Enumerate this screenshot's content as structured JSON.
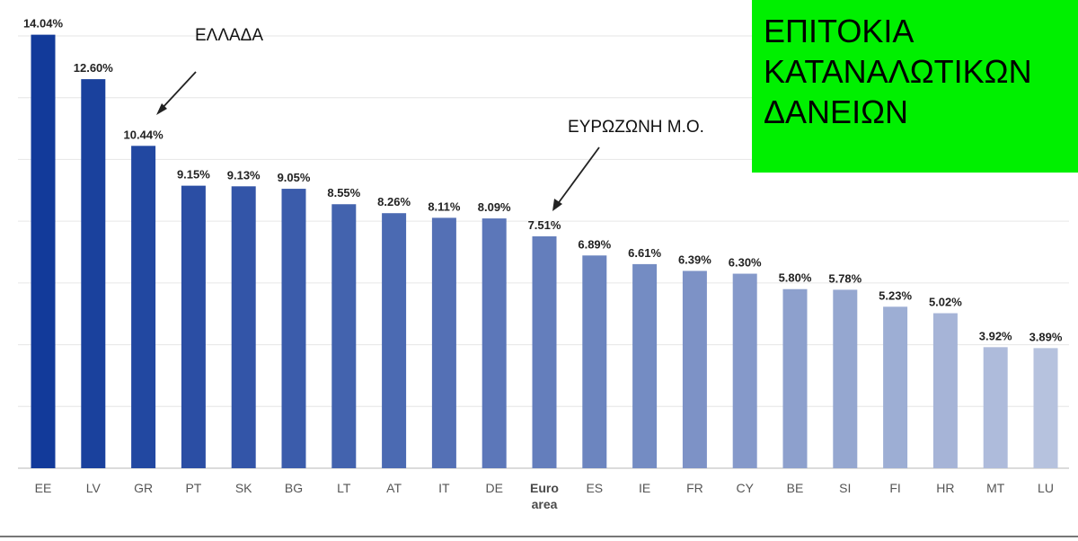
{
  "title_box": {
    "lines": [
      "ΕΠΙΤΟΚΙΑ",
      "ΚΑΤΑΝΑΛΩΤΙΚΩΝ",
      "ΔΑΝΕΙΩΝ"
    ],
    "background": "#00f000"
  },
  "annotations": [
    {
      "text": "ΕΛΛΑΔΑ",
      "points_to": "GR"
    },
    {
      "text": "ΕΥΡΩΖΩΝΗ Μ.Ο.",
      "points_to": "Euro area"
    }
  ],
  "chart_data": {
    "type": "bar",
    "categories": [
      "EE",
      "LV",
      "GR",
      "PT",
      "SK",
      "BG",
      "LT",
      "AT",
      "IT",
      "DE",
      "Euro area",
      "ES",
      "IE",
      "FR",
      "CY",
      "BE",
      "SI",
      "FI",
      "HR",
      "MT",
      "LU"
    ],
    "values": [
      14.04,
      12.6,
      10.44,
      9.15,
      9.13,
      9.05,
      8.55,
      8.26,
      8.11,
      8.09,
      7.51,
      6.89,
      6.61,
      6.39,
      6.3,
      5.8,
      5.78,
      5.23,
      5.02,
      3.92,
      3.89
    ],
    "value_labels": [
      "14.04%",
      "12.60%",
      "10.44%",
      "9.15%",
      "9.13%",
      "9.05%",
      "8.55%",
      "8.26%",
      "8.11%",
      "8.09%",
      "7.51%",
      "6.89%",
      "6.61%",
      "6.39%",
      "6.30%",
      "5.80%",
      "5.78%",
      "5.23%",
      "5.02%",
      "3.92%",
      "3.89%"
    ],
    "tick_labels": [
      [
        "EE"
      ],
      [
        "LV"
      ],
      [
        "GR"
      ],
      [
        "PT"
      ],
      [
        "SK"
      ],
      [
        "BG"
      ],
      [
        "LT"
      ],
      [
        "AT"
      ],
      [
        "IT"
      ],
      [
        "DE"
      ],
      [
        "Euro",
        "area"
      ],
      [
        "ES"
      ],
      [
        "IE"
      ],
      [
        "FR"
      ],
      [
        "CY"
      ],
      [
        "BE"
      ],
      [
        "SI"
      ],
      [
        "FI"
      ],
      [
        "HR"
      ],
      [
        "MT"
      ],
      [
        "LU"
      ]
    ],
    "highlight_tick": "Euro area",
    "ylim": [
      0,
      14
    ],
    "grid": true,
    "gridline_values": [
      2,
      4,
      6,
      8,
      10,
      12,
      14
    ],
    "title": "",
    "xlabel": "",
    "ylabel": "",
    "colors": {
      "darkest": "#123a9a",
      "lightest": "#b6c2de",
      "gridline": "#e6e6e6",
      "axis": "#cfcfcf",
      "arrow": "#222222"
    }
  }
}
